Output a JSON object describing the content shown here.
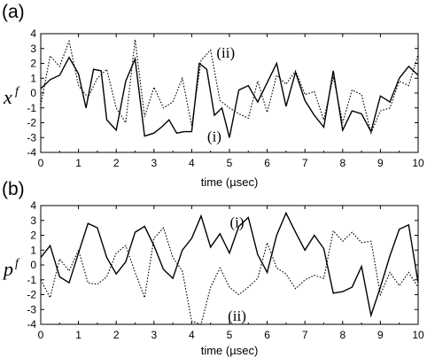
{
  "chart_data": [
    {
      "type": "line",
      "panel_label": "(a)",
      "xlabel": "time (µsec)",
      "ylabel": "x",
      "ylabel_superscript": "f",
      "xlim": [
        0,
        10
      ],
      "ylim": [
        -4,
        4
      ],
      "xticks": [
        "0",
        "1",
        "2",
        "3",
        "4",
        "5",
        "6",
        "7",
        "8",
        "9",
        "10"
      ],
      "yticks": [
        "4",
        "3",
        "2",
        "1",
        "0",
        "-1",
        "-2",
        "-3",
        "-4"
      ],
      "grid": false,
      "annotations": [
        {
          "text": "(ii)",
          "x": 4.9,
          "y": 2.75
        },
        {
          "text": "(i)",
          "x": 4.6,
          "y": -2.9
        }
      ],
      "series": [
        {
          "name": "(i)",
          "style": "solid",
          "x": [
            0,
            0.25,
            0.5,
            0.75,
            1,
            1.2,
            1.4,
            1.6,
            1.75,
            2,
            2.25,
            2.5,
            2.75,
            3,
            3.2,
            3.4,
            3.6,
            3.8,
            4,
            4.2,
            4.4,
            4.6,
            4.8,
            5,
            5.25,
            5.5,
            5.75,
            6,
            6.25,
            6.5,
            6.75,
            7,
            7.25,
            7.5,
            7.75,
            8,
            8.25,
            8.5,
            8.75,
            9,
            9.25,
            9.5,
            9.75,
            10
          ],
          "y": [
            0.3,
            0.9,
            1.2,
            2.4,
            1.3,
            -1.0,
            1.6,
            1.5,
            -1.8,
            -2.5,
            0.8,
            2.3,
            -2.9,
            -2.7,
            -2.3,
            -1.8,
            -2.7,
            -2.6,
            -2.6,
            2.0,
            1.6,
            -1.5,
            -1.0,
            -3.0,
            0.2,
            0.5,
            -0.6,
            0.7,
            2.0,
            -0.9,
            1.4,
            -0.5,
            -1.5,
            -2.3,
            1.5,
            -2.5,
            -1.2,
            -1.4,
            -2.6,
            -0.2,
            -0.6,
            1.0,
            1.8,
            1.2
          ]
        },
        {
          "name": "(ii)",
          "style": "dotted",
          "x": [
            0,
            0.25,
            0.5,
            0.75,
            1,
            1.25,
            1.5,
            1.75,
            2,
            2.25,
            2.5,
            2.75,
            3,
            3.25,
            3.5,
            3.75,
            4,
            4.25,
            4.5,
            4.75,
            5,
            5.25,
            5.5,
            5.75,
            6,
            6.25,
            6.5,
            6.75,
            7,
            7.25,
            7.5,
            7.75,
            8,
            8.25,
            8.5,
            8.75,
            9,
            9.25,
            9.5,
            9.75,
            10
          ],
          "y": [
            -0.8,
            2.5,
            1.8,
            3.5,
            0.5,
            -0.3,
            1.0,
            1.6,
            -1.0,
            -2.0,
            3.6,
            -1.6,
            0.4,
            -1.0,
            -0.6,
            1.0,
            -2.2,
            2.2,
            2.9,
            -0.5,
            -1.0,
            -1.4,
            -1.7,
            0.8,
            -1.3,
            1.2,
            0.6,
            1.5,
            -0.1,
            0.1,
            -1.8,
            1.1,
            -2.0,
            0.2,
            -0.1,
            -2.7,
            -1.2,
            -1.0,
            0.8,
            0.5,
            2.6
          ]
        }
      ]
    },
    {
      "type": "line",
      "panel_label": "(b)",
      "xlabel": "time (µsec)",
      "ylabel": "p",
      "ylabel_superscript": "f",
      "xlim": [
        0,
        10
      ],
      "ylim": [
        -4,
        4
      ],
      "xticks": [
        "0",
        "1",
        "2",
        "3",
        "4",
        "5",
        "6",
        "7",
        "8",
        "9",
        "10"
      ],
      "yticks": [
        "4",
        "3",
        "2",
        "1",
        "0",
        "-1",
        "-2",
        "-3",
        "-4"
      ],
      "grid": false,
      "annotations": [
        {
          "text": "(i)",
          "x": 5.2,
          "y": 2.9
        },
        {
          "text": "(ii)",
          "x": 5.2,
          "y": -3.4
        }
      ],
      "series": [
        {
          "name": "(i)",
          "style": "solid",
          "x": [
            0,
            0.25,
            0.5,
            0.75,
            1,
            1.25,
            1.5,
            1.75,
            2,
            2.25,
            2.5,
            2.75,
            3,
            3.25,
            3.5,
            3.75,
            4,
            4.25,
            4.5,
            4.75,
            5,
            5.25,
            5.5,
            5.75,
            6,
            6.25,
            6.5,
            6.75,
            7,
            7.25,
            7.5,
            7.75,
            8,
            8.25,
            8.5,
            8.75,
            9,
            9.25,
            9.5,
            9.75,
            10
          ],
          "y": [
            0.5,
            1.3,
            -0.8,
            -1.2,
            0.8,
            2.8,
            2.5,
            0.5,
            -0.6,
            0.2,
            2.2,
            2.6,
            1.3,
            -0.3,
            -0.9,
            1.0,
            1.8,
            3.3,
            1.2,
            2.1,
            0.8,
            2.6,
            3.2,
            0.7,
            -0.5,
            2.0,
            3.5,
            2.2,
            1.0,
            2.0,
            1.1,
            -1.9,
            -1.8,
            -1.5,
            -0.1,
            -3.4,
            -1.5,
            0.6,
            2.4,
            2.7,
            -1.2
          ]
        },
        {
          "name": "(ii)",
          "style": "dotted",
          "x": [
            0,
            0.25,
            0.5,
            0.75,
            1,
            1.25,
            1.5,
            1.75,
            2,
            2.25,
            2.5,
            2.75,
            3,
            3.25,
            3.5,
            3.75,
            4,
            4.25,
            4.5,
            4.75,
            5,
            5.25,
            5.5,
            5.75,
            6,
            6.25,
            6.5,
            6.75,
            7,
            7.25,
            7.5,
            7.75,
            8,
            8.25,
            8.5,
            8.75,
            9,
            9.25,
            9.5,
            9.75,
            10
          ],
          "y": [
            -1.0,
            -2.2,
            0.4,
            -0.4,
            1.0,
            -1.2,
            -1.3,
            -0.8,
            0.8,
            1.3,
            -0.5,
            -2.2,
            1.8,
            2.5,
            0.5,
            -0.4,
            -3.8,
            -4.0,
            -1.5,
            -0.2,
            -1.5,
            -2.0,
            -1.5,
            -0.9,
            1.5,
            -0.2,
            -0.6,
            -1.6,
            -1.0,
            -0.7,
            -0.9,
            2.3,
            1.6,
            2.2,
            1.5,
            1.6,
            -2.0,
            -0.5,
            -1.4,
            -0.5,
            -1.5
          ]
        }
      ]
    }
  ]
}
